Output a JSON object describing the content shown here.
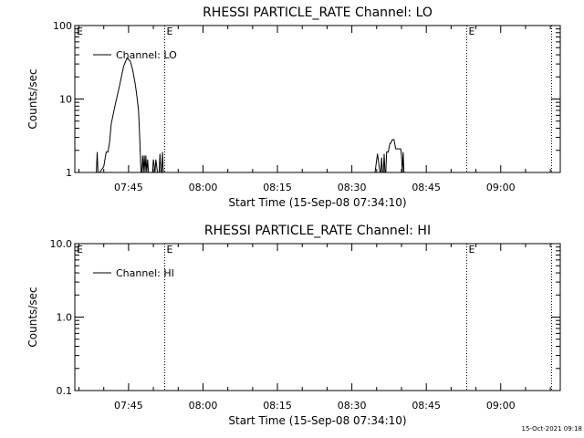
{
  "footer_timestamp": "15-Oct-2021 09:18",
  "chart_data": [
    {
      "type": "line",
      "title": "RHESSI PARTICLE_RATE Channel: LO",
      "xlabel": "Start Time (15-Sep-08 07:34:10)",
      "ylabel": "Counts/sec",
      "yscale": "log",
      "xlim": [
        "07:34:10",
        "09:12:00"
      ],
      "ylim": [
        1,
        100
      ],
      "x_ticks": [
        "07:45",
        "08:00",
        "08:15",
        "08:30",
        "08:45",
        "09:00"
      ],
      "y_ticks": [
        {
          "value": 1,
          "label": "1"
        },
        {
          "value": 10,
          "label": "10"
        },
        {
          "value": 100,
          "label": "100"
        }
      ],
      "event_lines": [
        {
          "time": "07:52:10",
          "label": "E"
        },
        {
          "time": "08:53:00",
          "label": "E"
        },
        {
          "time": "09:10:10",
          "label": ""
        }
      ],
      "event_start_label": "E",
      "legend": "top-left",
      "series": [
        {
          "name": "Channel: LO",
          "x": [
            "07:38:30",
            "07:38:40",
            "07:38:50",
            "07:39:10",
            "07:40:00",
            "07:40:30",
            "07:40:50",
            "07:41:10",
            "07:41:30",
            "07:42:20",
            "07:43:10",
            "07:44:00",
            "07:44:40",
            "07:45:20",
            "07:45:50",
            "07:46:20",
            "07:46:40",
            "07:47:00",
            "07:47:10",
            "07:47:20",
            "07:47:30",
            "07:47:40",
            "07:47:50",
            "07:48:00",
            "07:48:10",
            "07:48:20",
            "07:48:30",
            "07:48:40",
            "07:48:50",
            "07:49:00",
            "07:49:50",
            "07:50:00",
            "07:50:20",
            "07:50:30",
            "07:50:50",
            "07:51:10",
            "07:51:20",
            "07:51:30",
            "07:51:40",
            "07:51:50",
            "07:52:00",
            "08:34:40",
            "08:35:10",
            "08:35:40",
            "08:35:50",
            "08:36:00",
            "08:36:10",
            "08:36:20",
            "08:36:30",
            "08:36:40",
            "08:36:50",
            "08:37:00",
            "08:37:20",
            "08:37:40",
            "08:37:50",
            "08:38:10",
            "08:38:20",
            "08:38:30",
            "08:38:50",
            "08:39:20",
            "08:39:50",
            "08:40:00",
            "08:40:10",
            "08:40:20",
            "08:40:30",
            "08:40:40",
            "08:41:00"
          ],
          "values": [
            1.0,
            1.9,
            1.0,
            1.0,
            1.2,
            1.9,
            1.9,
            2.6,
            4.6,
            8.5,
            15.0,
            28.0,
            36.0,
            33.0,
            25.0,
            16.0,
            11.0,
            7.0,
            4.0,
            2.0,
            1.0,
            1.0,
            1.7,
            1.0,
            1.7,
            1.0,
            1.7,
            1.0,
            1.5,
            1.0,
            1.0,
            1.5,
            1.0,
            1.5,
            1.0,
            1.0,
            1.8,
            1.0,
            1.0,
            1.9,
            1.0,
            1.0,
            1.8,
            1.0,
            1.0,
            1.6,
            1.0,
            1.0,
            1.8,
            1.0,
            1.0,
            1.9,
            1.9,
            2.5,
            2.5,
            2.8,
            2.8,
            2.8,
            2.1,
            2.1,
            2.1,
            1.7,
            1.0,
            1.9,
            1.0,
            1.0,
            1.0
          ]
        }
      ]
    },
    {
      "type": "line",
      "title": "RHESSI PARTICLE_RATE Channel: HI",
      "xlabel": "Start Time (15-Sep-08 07:34:10)",
      "ylabel": "Counts/sec",
      "yscale": "log",
      "xlim": [
        "07:34:10",
        "09:12:00"
      ],
      "ylim": [
        0.1,
        10
      ],
      "x_ticks": [
        "07:45",
        "08:00",
        "08:15",
        "08:30",
        "08:45",
        "09:00"
      ],
      "y_ticks": [
        {
          "value": 0.1,
          "label": "0.1"
        },
        {
          "value": 1,
          "label": "1.0"
        },
        {
          "value": 10,
          "label": "10.0"
        }
      ],
      "event_lines": [
        {
          "time": "07:52:10",
          "label": "E"
        },
        {
          "time": "08:53:00",
          "label": "E"
        },
        {
          "time": "09:10:10",
          "label": ""
        }
      ],
      "event_start_label": "E",
      "legend": "top-left",
      "series": [
        {
          "name": "Channel: HI",
          "x": [],
          "values": []
        }
      ]
    }
  ]
}
